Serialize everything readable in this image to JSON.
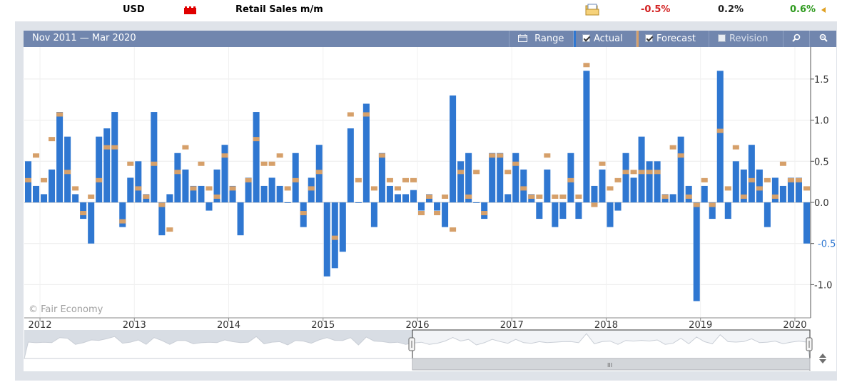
{
  "event": {
    "currency": "USD",
    "title": "Retail Sales m/m",
    "actual": "-0.5%",
    "forecast": "0.2%",
    "previous": "0.6%",
    "actual_color": "#d21f1f",
    "previous_color": "#2e9a1e"
  },
  "toolbar": {
    "date_range": "Nov 2011 — Mar 2020",
    "range_label": "Range",
    "actual_label": "Actual",
    "forecast_label": "Forecast",
    "revision_label": "Revision"
  },
  "watermark": "© Fair Economy",
  "chart_data": {
    "type": "bar",
    "x_axis_labels": [
      "2012",
      "2013",
      "2014",
      "2015",
      "2016",
      "2017",
      "2018",
      "2019",
      "2020"
    ],
    "y_ticks": [
      "1.5",
      "1.0",
      "0.5",
      "0.0",
      "-0.5",
      "-1.0"
    ],
    "ylim": [
      -1.25,
      1.85
    ],
    "grid": true,
    "series": [
      {
        "name": "Actual",
        "color": "#2f77d1",
        "values": [
          0.5,
          0.2,
          0.1,
          0.4,
          1.1,
          0.8,
          0.1,
          -0.2,
          -0.5,
          0.8,
          0.9,
          1.1,
          -0.3,
          0.3,
          0.5,
          0.1,
          1.1,
          -0.4,
          0.1,
          0.6,
          0.4,
          0.2,
          0.2,
          -0.1,
          0.4,
          0.7,
          0.2,
          -0.4,
          0.3,
          1.1,
          0.2,
          0.3,
          0.2,
          0.0,
          0.6,
          -0.3,
          0.3,
          0.7,
          -0.9,
          -0.8,
          -0.6,
          0.9,
          0.0,
          1.2,
          -0.3,
          0.6,
          0.2,
          0.1,
          0.1,
          0.15,
          -0.1,
          0.1,
          -0.1,
          -0.3,
          1.3,
          0.5,
          0.6,
          0.0,
          -0.2,
          0.6,
          0.6,
          0.1,
          0.6,
          0.4,
          0.1,
          -0.2,
          0.4,
          -0.3,
          -0.2,
          0.6,
          -0.2,
          1.6,
          0.2,
          0.4,
          -0.3,
          -0.1,
          0.6,
          0.3,
          0.8,
          0.5,
          0.5,
          0.1,
          0.1,
          0.8,
          0.2,
          -1.2,
          0.2,
          -0.2,
          1.6,
          -0.2,
          0.5,
          0.4,
          0.7,
          0.4,
          -0.3,
          0.3,
          0.2,
          0.3,
          0.3,
          -0.5
        ]
      },
      {
        "name": "Forecast",
        "color": "#d6a06a",
        "values": [
          0.27,
          0.57,
          0.27,
          0.77,
          1.07,
          0.37,
          0.17,
          -0.13,
          0.07,
          0.27,
          0.67,
          0.67,
          -0.23,
          0.47,
          0.17,
          0.07,
          0.47,
          -0.03,
          -0.33,
          0.37,
          0.67,
          0.17,
          0.47,
          0.17,
          0.07,
          0.57,
          0.17,
          null,
          0.27,
          0.77,
          0.47,
          0.47,
          0.57,
          0.17,
          0.27,
          -0.13,
          0.17,
          0.37,
          null,
          -0.43,
          null,
          1.07,
          0.27,
          1.07,
          0.17,
          0.57,
          0.27,
          0.17,
          0.27,
          0.27,
          -0.13,
          0.07,
          -0.13,
          0.07,
          -0.33,
          0.37,
          0.07,
          0.37,
          -0.13,
          0.57,
          0.57,
          0.37,
          0.47,
          0.17,
          0.07,
          0.07,
          0.57,
          0.07,
          0.07,
          0.27,
          0.07,
          1.67,
          -0.03,
          0.47,
          0.17,
          0.27,
          0.37,
          0.37,
          0.37,
          0.37,
          0.37,
          0.07,
          0.67,
          0.57,
          0.07,
          -0.03,
          0.27,
          -0.03,
          0.87,
          0.17,
          0.67,
          0.07,
          0.27,
          0.17,
          0.27,
          0.07,
          0.47,
          0.27,
          0.27,
          0.17
        ]
      }
    ]
  }
}
